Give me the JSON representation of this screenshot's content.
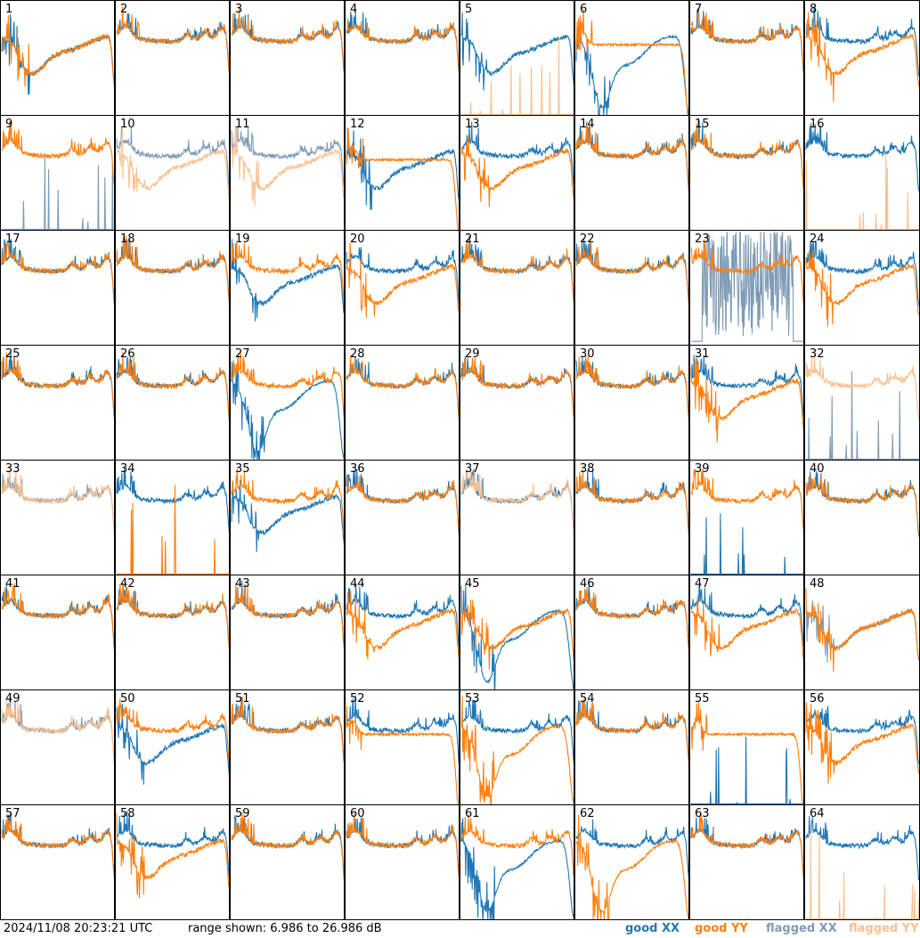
{
  "chart_data": {
    "type": "line",
    "timestamp": "2024/11/08 20:23:21 UTC",
    "range_text": "range shown: 6.986 to 26.986 dB",
    "ylim": [
      6.986,
      26.986
    ],
    "grid": false,
    "legend_position": "bottom-right",
    "legend": {
      "good_xx": "good XX",
      "good_yy": "good YY",
      "flagged_xx": "flagged XX",
      "flagged_yy": "flagged YY"
    },
    "colors": {
      "good_xx": "#1f77b4",
      "good_yy": "#ff7f0e",
      "flagged_xx": "#7f9bb5",
      "flagged_yy": "#f9c08f"
    },
    "panels": [
      {
        "label": "1",
        "xx": "good",
        "yy": "good",
        "xx_shape": "dip",
        "yy_shape": "dip"
      },
      {
        "label": "2",
        "xx": "good",
        "yy": "good",
        "xx_shape": "normal",
        "yy_shape": "normal"
      },
      {
        "label": "3",
        "xx": "good",
        "yy": "good",
        "xx_shape": "normal",
        "yy_shape": "normal"
      },
      {
        "label": "4",
        "xx": "good",
        "yy": "good",
        "xx_shape": "normal",
        "yy_shape": "normal"
      },
      {
        "label": "5",
        "xx": "good",
        "yy": "flagged",
        "xx_shape": "dip",
        "yy_shape": "dead"
      },
      {
        "label": "6",
        "xx": "good",
        "yy": "good",
        "xx_shape": "deepdip",
        "yy_shape": "flat"
      },
      {
        "label": "7",
        "xx": "good",
        "yy": "good",
        "xx_shape": "normal",
        "yy_shape": "normal"
      },
      {
        "label": "8",
        "xx": "good",
        "yy": "good",
        "xx_shape": "normal",
        "yy_shape": "dip"
      },
      {
        "label": "9",
        "xx": "flagged",
        "yy": "good",
        "xx_shape": "dead",
        "yy_shape": "normal"
      },
      {
        "label": "10",
        "xx": "flagged",
        "yy": "flagged",
        "xx_shape": "normal",
        "yy_shape": "dip"
      },
      {
        "label": "11",
        "xx": "flagged",
        "yy": "flagged",
        "xx_shape": "normal",
        "yy_shape": "dip"
      },
      {
        "label": "12",
        "xx": "good",
        "yy": "good",
        "xx_shape": "dip",
        "yy_shape": "flat"
      },
      {
        "label": "13",
        "xx": "good",
        "yy": "good",
        "xx_shape": "normal",
        "yy_shape": "dip"
      },
      {
        "label": "14",
        "xx": "good",
        "yy": "good",
        "xx_shape": "normal",
        "yy_shape": "normal"
      },
      {
        "label": "15",
        "xx": "good",
        "yy": "good",
        "xx_shape": "normal",
        "yy_shape": "normal"
      },
      {
        "label": "16",
        "xx": "good",
        "yy": "flagged",
        "xx_shape": "normal",
        "yy_shape": "dead"
      },
      {
        "label": "17",
        "xx": "good",
        "yy": "good",
        "xx_shape": "normal",
        "yy_shape": "normal"
      },
      {
        "label": "18",
        "xx": "good",
        "yy": "good",
        "xx_shape": "normal",
        "yy_shape": "normal"
      },
      {
        "label": "19",
        "xx": "good",
        "yy": "good",
        "xx_shape": "dip",
        "yy_shape": "normal"
      },
      {
        "label": "20",
        "xx": "good",
        "yy": "good",
        "xx_shape": "normal",
        "yy_shape": "dip"
      },
      {
        "label": "21",
        "xx": "good",
        "yy": "good",
        "xx_shape": "normal",
        "yy_shape": "normal"
      },
      {
        "label": "22",
        "xx": "good",
        "yy": "good",
        "xx_shape": "normal",
        "yy_shape": "normal"
      },
      {
        "label": "23",
        "xx": "flagged",
        "yy": "good",
        "xx_shape": "noisy",
        "yy_shape": "normal"
      },
      {
        "label": "24",
        "xx": "good",
        "yy": "good",
        "xx_shape": "normal",
        "yy_shape": "dip"
      },
      {
        "label": "25",
        "xx": "good",
        "yy": "good",
        "xx_shape": "normal",
        "yy_shape": "normal"
      },
      {
        "label": "26",
        "xx": "good",
        "yy": "good",
        "xx_shape": "normal",
        "yy_shape": "normal"
      },
      {
        "label": "27",
        "xx": "good",
        "yy": "good",
        "xx_shape": "deepdip",
        "yy_shape": "normal"
      },
      {
        "label": "28",
        "xx": "good",
        "yy": "good",
        "xx_shape": "normal",
        "yy_shape": "normal"
      },
      {
        "label": "29",
        "xx": "good",
        "yy": "good",
        "xx_shape": "normal",
        "yy_shape": "normal"
      },
      {
        "label": "30",
        "xx": "good",
        "yy": "good",
        "xx_shape": "normal",
        "yy_shape": "normal"
      },
      {
        "label": "31",
        "xx": "good",
        "yy": "good",
        "xx_shape": "normal",
        "yy_shape": "dip"
      },
      {
        "label": "32",
        "xx": "flagged",
        "yy": "flagged",
        "xx_shape": "dead",
        "yy_shape": "normal"
      },
      {
        "label": "33",
        "xx": "flagged",
        "yy": "flagged",
        "xx_shape": "normal",
        "yy_shape": "normal"
      },
      {
        "label": "34",
        "xx": "good",
        "yy": "good",
        "xx_shape": "normal",
        "yy_shape": "dead"
      },
      {
        "label": "35",
        "xx": "good",
        "yy": "good",
        "xx_shape": "dip",
        "yy_shape": "normal"
      },
      {
        "label": "36",
        "xx": "good",
        "yy": "good",
        "xx_shape": "normal",
        "yy_shape": "normal"
      },
      {
        "label": "37",
        "xx": "good",
        "yy": "flagged",
        "xx_shape": "normal",
        "yy_shape": "normal"
      },
      {
        "label": "38",
        "xx": "good",
        "yy": "good",
        "xx_shape": "normal",
        "yy_shape": "normal"
      },
      {
        "label": "39",
        "xx": "good",
        "yy": "good",
        "xx_shape": "dead",
        "yy_shape": "normal"
      },
      {
        "label": "40",
        "xx": "good",
        "yy": "good",
        "xx_shape": "normal",
        "yy_shape": "normal"
      },
      {
        "label": "41",
        "xx": "good",
        "yy": "good",
        "xx_shape": "normal",
        "yy_shape": "normal"
      },
      {
        "label": "42",
        "xx": "good",
        "yy": "good",
        "xx_shape": "normal",
        "yy_shape": "normal"
      },
      {
        "label": "43",
        "xx": "good",
        "yy": "good",
        "xx_shape": "normal",
        "yy_shape": "normal"
      },
      {
        "label": "44",
        "xx": "good",
        "yy": "good",
        "xx_shape": "normal",
        "yy_shape": "dip"
      },
      {
        "label": "45",
        "xx": "good",
        "yy": "good",
        "xx_shape": "deepdip",
        "yy_shape": "dip"
      },
      {
        "label": "46",
        "xx": "good",
        "yy": "good",
        "xx_shape": "normal",
        "yy_shape": "normal"
      },
      {
        "label": "47",
        "xx": "good",
        "yy": "good",
        "xx_shape": "normal",
        "yy_shape": "dip"
      },
      {
        "label": "48",
        "xx": "flagged",
        "yy": "good",
        "xx_shape": "dip",
        "yy_shape": "dip"
      },
      {
        "label": "49",
        "xx": "flagged",
        "yy": "flagged",
        "xx_shape": "normal",
        "yy_shape": "normal"
      },
      {
        "label": "50",
        "xx": "good",
        "yy": "good",
        "xx_shape": "dip",
        "yy_shape": "normal"
      },
      {
        "label": "51",
        "xx": "good",
        "yy": "good",
        "xx_shape": "normal",
        "yy_shape": "normal"
      },
      {
        "label": "52",
        "xx": "good",
        "yy": "good",
        "xx_shape": "normal",
        "yy_shape": "flat"
      },
      {
        "label": "53",
        "xx": "good",
        "yy": "good",
        "xx_shape": "normal",
        "yy_shape": "deepdip"
      },
      {
        "label": "54",
        "xx": "good",
        "yy": "good",
        "xx_shape": "normal",
        "yy_shape": "normal"
      },
      {
        "label": "55",
        "xx": "good",
        "yy": "good",
        "xx_shape": "dead",
        "yy_shape": "flat"
      },
      {
        "label": "56",
        "xx": "good",
        "yy": "good",
        "xx_shape": "normal",
        "yy_shape": "dip"
      },
      {
        "label": "57",
        "xx": "good",
        "yy": "good",
        "xx_shape": "normal",
        "yy_shape": "normal"
      },
      {
        "label": "58",
        "xx": "good",
        "yy": "good",
        "xx_shape": "normal",
        "yy_shape": "dip"
      },
      {
        "label": "59",
        "xx": "good",
        "yy": "good",
        "xx_shape": "normal",
        "yy_shape": "normal"
      },
      {
        "label": "60",
        "xx": "good",
        "yy": "good",
        "xx_shape": "normal",
        "yy_shape": "normal"
      },
      {
        "label": "61",
        "xx": "good",
        "yy": "good",
        "xx_shape": "deepdip",
        "yy_shape": "normal"
      },
      {
        "label": "62",
        "xx": "good",
        "yy": "good",
        "xx_shape": "normal",
        "yy_shape": "deepdip"
      },
      {
        "label": "63",
        "xx": "good",
        "yy": "good",
        "xx_shape": "normal",
        "yy_shape": "normal"
      },
      {
        "label": "64",
        "xx": "good",
        "yy": "flagged",
        "xx_shape": "normal",
        "yy_shape": "dead"
      }
    ]
  }
}
